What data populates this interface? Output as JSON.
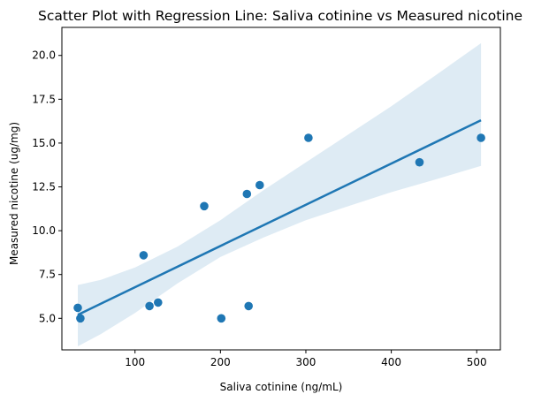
{
  "chart_data": {
    "type": "scatter",
    "title": "Scatter Plot with Regression Line: Saliva cotinine vs Measured nicotine",
    "xlabel": "Saliva cotinine (ng/mL)",
    "ylabel": "Measured nicotine (ug/mg)",
    "xlim": [
      14.4,
      527.7
    ],
    "ylim": [
      3.2,
      21.6
    ],
    "xticks": [
      100,
      200,
      300,
      400,
      500
    ],
    "yticks": [
      5.0,
      7.5,
      10.0,
      12.5,
      15.0,
      17.5,
      20.0
    ],
    "xtick_labels": [
      "100",
      "200",
      "300",
      "400",
      "500"
    ],
    "ytick_labels": [
      "5.0",
      "7.5",
      "10.0",
      "12.5",
      "15.0",
      "17.5",
      "20.0"
    ],
    "points": [
      {
        "x": 33,
        "y": 5.6
      },
      {
        "x": 36,
        "y": 5.0
      },
      {
        "x": 110,
        "y": 8.6
      },
      {
        "x": 117,
        "y": 5.7
      },
      {
        "x": 127,
        "y": 5.9
      },
      {
        "x": 181,
        "y": 11.4
      },
      {
        "x": 201,
        "y": 5.0
      },
      {
        "x": 231,
        "y": 12.1
      },
      {
        "x": 233,
        "y": 5.7
      },
      {
        "x": 246,
        "y": 12.6
      },
      {
        "x": 303,
        "y": 15.3
      },
      {
        "x": 433,
        "y": 13.9
      },
      {
        "x": 505,
        "y": 15.3
      }
    ],
    "regression": {
      "x_start": 33,
      "y_start": 5.2,
      "x_end": 505,
      "y_end": 16.3
    },
    "confidence_band": {
      "x": [
        33,
        60,
        100,
        150,
        200,
        250,
        300,
        350,
        400,
        450,
        505
      ],
      "upper": [
        6.9,
        7.2,
        7.9,
        9.1,
        10.6,
        12.3,
        13.9,
        15.5,
        17.1,
        18.8,
        20.7
      ],
      "lower": [
        3.4,
        4.1,
        5.3,
        7.0,
        8.5,
        9.6,
        10.6,
        11.4,
        12.2,
        12.9,
        13.7
      ]
    },
    "colors": {
      "points": "#1f77b4",
      "line": "#1f77b4",
      "band": "#1f77b4"
    },
    "grid": false,
    "legend": "none"
  }
}
